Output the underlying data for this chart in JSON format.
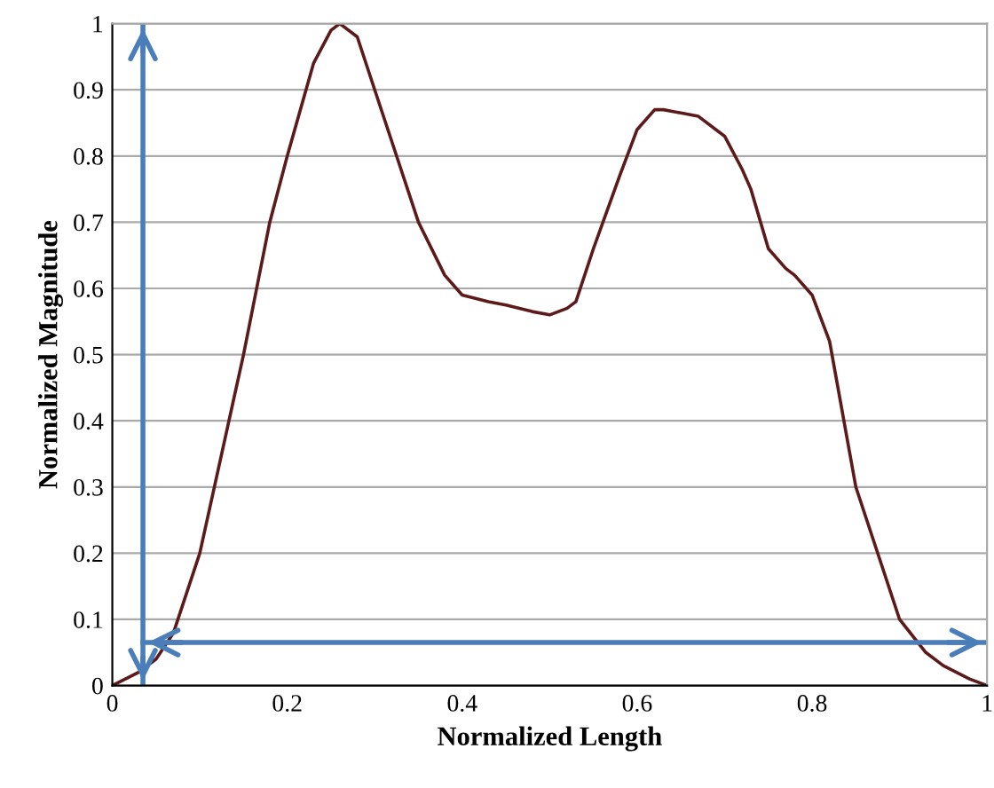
{
  "chart_data": {
    "type": "line",
    "xlabel": "Normalized Length",
    "ylabel": "Normalized Magnitude",
    "series": [
      {
        "color": "#5c1a1a",
        "x": [
          0,
          0.03,
          0.05,
          0.07,
          0.1,
          0.13,
          0.15,
          0.18,
          0.2,
          0.23,
          0.25,
          0.26,
          0.28,
          0.3,
          0.33,
          0.35,
          0.38,
          0.4,
          0.43,
          0.45,
          0.48,
          0.5,
          0.52,
          0.53,
          0.55,
          0.58,
          0.6,
          0.62,
          0.63,
          0.65,
          0.67,
          0.7,
          0.72,
          0.73,
          0.75,
          0.77,
          0.78,
          0.8,
          0.82,
          0.85,
          0.88,
          0.9,
          0.93,
          0.95,
          0.98,
          1.0
        ],
        "values": [
          0,
          0.02,
          0.04,
          0.08,
          0.2,
          0.38,
          0.5,
          0.7,
          0.8,
          0.94,
          0.99,
          1.0,
          0.98,
          0.9,
          0.78,
          0.7,
          0.62,
          0.59,
          0.58,
          0.575,
          0.565,
          0.56,
          0.57,
          0.58,
          0.66,
          0.77,
          0.84,
          0.87,
          0.87,
          0.865,
          0.86,
          0.83,
          0.78,
          0.75,
          0.66,
          0.63,
          0.62,
          0.59,
          0.52,
          0.3,
          0.18,
          0.1,
          0.05,
          0.03,
          0.01,
          0
        ]
      }
    ],
    "xlim": [
      0,
      1
    ],
    "ylim": [
      0,
      1
    ],
    "xticks": [
      0,
      0.2,
      0.4,
      0.6,
      0.8,
      {
        "value": 1,
        "label": "1"
      }
    ],
    "yticks": [
      0,
      0.1,
      0.2,
      0.3,
      0.4,
      0.5,
      0.6,
      0.7,
      0.8,
      0.9,
      {
        "value": 1,
        "label": "1"
      }
    ],
    "ref_lines": [
      {
        "axis": "x",
        "value": 0.035,
        "color": "#4a7ebb"
      },
      {
        "axis": "y",
        "value": 0.065,
        "color": "#4a7ebb"
      }
    ],
    "grid": "y",
    "line_style": "solid",
    "marker": "none"
  }
}
